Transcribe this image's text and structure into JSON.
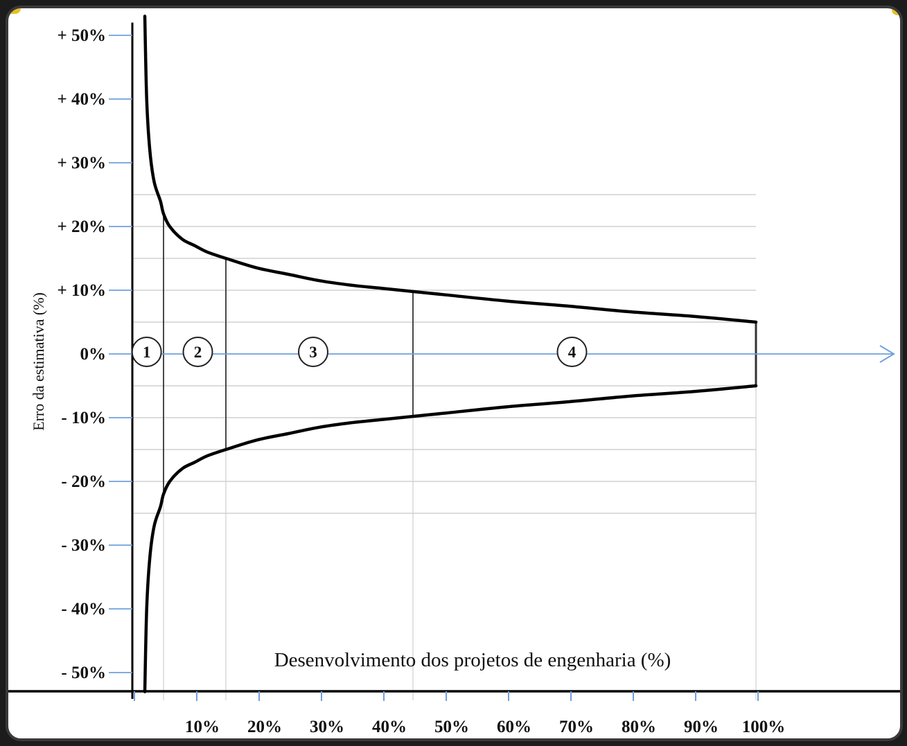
{
  "chart_data": {
    "type": "line",
    "title": "",
    "xlabel": "Desenvolvimento dos projetos de engenharia (%)",
    "ylabel": "Erro da estimativa (%)",
    "xlim": [
      0,
      110
    ],
    "ylim": [
      -50,
      50
    ],
    "x_ticks": [
      10,
      20,
      30,
      40,
      50,
      60,
      70,
      80,
      90,
      100
    ],
    "x_tick_labels": [
      "10%",
      "20%",
      "30%",
      "40%",
      "50%",
      "60%",
      "70%",
      "80%",
      "90%",
      "100%"
    ],
    "y_ticks": [
      50,
      40,
      30,
      20,
      10,
      0,
      -10,
      -20,
      -30,
      -40,
      -50
    ],
    "y_tick_labels": [
      "+ 50%",
      "+ 40%",
      "+ 30%",
      "+ 20%",
      "+ 10%",
      "0%",
      "- 10%",
      "- 20%",
      "- 30%",
      "- 40%",
      "- 50%"
    ],
    "grid": true,
    "series": [
      {
        "x": [
          2,
          2.3,
          2.8,
          3.5,
          4.5,
          5,
          6,
          8,
          10,
          12,
          15,
          20,
          25,
          30,
          35,
          40,
          45,
          50,
          60,
          70,
          80,
          90,
          100
        ],
        "values": [
          53,
          40,
          32,
          27,
          24,
          22,
          20,
          18,
          17,
          16,
          15,
          13.5,
          12.5,
          11.5,
          10.8,
          10.3,
          9.8,
          9.3,
          8.3,
          7.5,
          6.6,
          5.9,
          5
        ]
      },
      {
        "x": [
          2,
          2.3,
          2.8,
          3.5,
          4.5,
          5,
          6,
          8,
          10,
          12,
          15,
          20,
          25,
          30,
          35,
          40,
          45,
          50,
          60,
          70,
          80,
          90,
          100
        ],
        "values": [
          -53,
          -40,
          -32,
          -27,
          -24,
          -22,
          -20,
          -18,
          -17,
          -16,
          -15,
          -13.5,
          -12.5,
          -11.5,
          -10.8,
          -10.3,
          -9.8,
          -9.3,
          -8.3,
          -7.5,
          -6.6,
          -5.9,
          -5
        ]
      }
    ],
    "phase_boundaries": [
      5,
      15,
      45,
      100
    ],
    "phases": [
      {
        "label": "1",
        "x": 2.3
      },
      {
        "label": "2",
        "x": 10.5
      },
      {
        "label": "3",
        "x": 29
      },
      {
        "label": "4",
        "x": 70.5
      }
    ],
    "colors": {
      "curve": "#000000",
      "axis": "#000000",
      "zero_axis": "#6fa0dc",
      "grid": "#c8c8c8",
      "tick": "#6fa0dc"
    }
  }
}
